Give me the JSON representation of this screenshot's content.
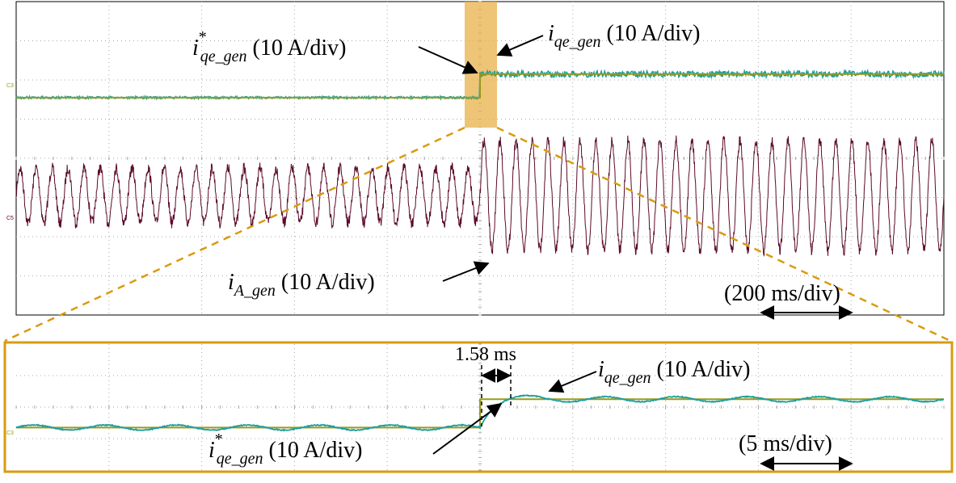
{
  "colors": {
    "teal": "#1f9e9e",
    "olive": "#9a9a1a",
    "maroon": "#5a0a2a",
    "highlight": "#e8b24a",
    "zoom_border": "#d99b10",
    "grid": "#a8a8a8"
  },
  "top_panel": {
    "iq_ref_label": {
      "sym": "i",
      "sup": "*",
      "sub": "qe_gen",
      "unit": " (10 A/div)"
    },
    "iq_label": {
      "sym": "i",
      "sub": "qe_gen",
      "unit": " (10 A/div)"
    },
    "ia_label": {
      "sym": "i",
      "sub": "A_gen",
      "unit": " (10 A/div)"
    },
    "time_scale": "(200 ms/div)",
    "ch_marker_iq": "C3",
    "ch_marker_ia": "C5"
  },
  "zoom_panel": {
    "delay_label": "1.58 ms",
    "iq_label": {
      "sym": "i",
      "sub": "qe_gen",
      "unit": " (10 A/div)"
    },
    "iq_ref_label": {
      "sym": "i",
      "sup": "*",
      "sub": "qe_gen",
      "unit": " (10 A/div)"
    },
    "time_scale": "(5 ms/div)",
    "ch_marker": "C3"
  },
  "chart_data": [
    {
      "type": "line",
      "xlabel": "",
      "ylabel": "",
      "x_divisions": 10,
      "y_divisions": 8,
      "time_per_div_ms": 200,
      "series": [
        {
          "name": "i*qe_gen",
          "step_at_div": 5.0,
          "level_before_div": 2.45,
          "level_after_div": 1.85
        },
        {
          "name": "iqe_gen",
          "step_at_div": 5.0,
          "level_before_div": 2.45,
          "level_after_div": 1.85,
          "ripple_div": 0.08
        },
        {
          "name": "iA_gen",
          "type": "sinusoid",
          "center_div": 4.95,
          "amplitude_before_div": 0.7,
          "amplitude_after_div": 1.4,
          "cycles_before": 29,
          "cycles_after": 29
        }
      ]
    },
    {
      "type": "line",
      "xlabel": "",
      "ylabel": "",
      "x_divisions": 10,
      "y_divisions": 4,
      "time_per_div_ms": 5,
      "series": [
        {
          "name": "i*qe_gen",
          "step_at_div": 5.0,
          "level_before_div": 2.65,
          "level_after_div": 1.75
        },
        {
          "name": "iqe_gen",
          "step_at_div": 5.0,
          "delay_ms": 1.58,
          "level_before_div": 2.65,
          "level_after_div": 1.75,
          "overshoot_div": 0.35,
          "ripple_div": 0.08,
          "ripple_cycles": 13
        }
      ]
    }
  ]
}
